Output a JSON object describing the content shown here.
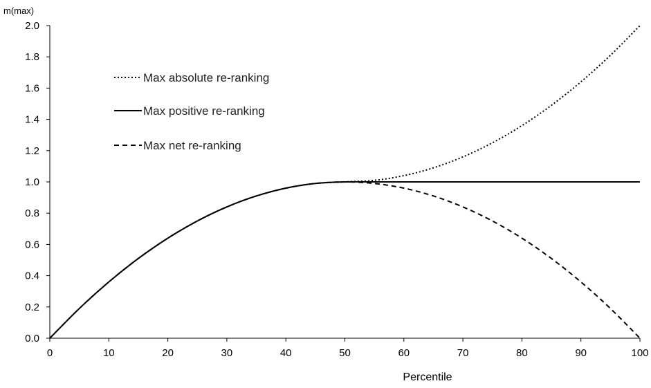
{
  "chart_data": {
    "type": "line",
    "title": "",
    "xlabel": "Percentile",
    "ylabel": "m(max)",
    "xlim": [
      0,
      100
    ],
    "ylim": [
      0,
      2
    ],
    "x_ticks": [
      "0",
      "10",
      "20",
      "30",
      "40",
      "50",
      "60",
      "70",
      "80",
      "90",
      "100"
    ],
    "y_ticks": [
      "0.0",
      "0.2",
      "0.4",
      "0.6",
      "0.8",
      "1.0",
      "1.2",
      "1.4",
      "1.6",
      "1.8",
      "2.0"
    ],
    "grid": false,
    "legend_position": "top-left",
    "x": [
      0,
      5,
      10,
      15,
      20,
      25,
      30,
      35,
      40,
      45,
      50,
      55,
      60,
      65,
      70,
      75,
      80,
      85,
      90,
      95,
      100
    ],
    "series": [
      {
        "name": "Max absolute re-ranking",
        "style": "dotted",
        "values": [
          0.0,
          0.19,
          0.36,
          0.51,
          0.64,
          0.75,
          0.84,
          0.91,
          0.96,
          0.99,
          1.0,
          1.01,
          1.04,
          1.09,
          1.16,
          1.25,
          1.36,
          1.49,
          1.64,
          1.81,
          2.0
        ]
      },
      {
        "name": "Max positive re-ranking",
        "style": "solid",
        "values": [
          0.0,
          0.19,
          0.36,
          0.51,
          0.64,
          0.75,
          0.84,
          0.91,
          0.96,
          0.99,
          1.0,
          1.0,
          1.0,
          1.0,
          1.0,
          1.0,
          1.0,
          1.0,
          1.0,
          1.0,
          1.0
        ]
      },
      {
        "name": "Max net re-ranking",
        "style": "dashed",
        "values": [
          0.0,
          0.19,
          0.36,
          0.51,
          0.64,
          0.75,
          0.84,
          0.91,
          0.96,
          0.99,
          1.0,
          0.99,
          0.96,
          0.91,
          0.84,
          0.75,
          0.64,
          0.51,
          0.36,
          0.19,
          0.0
        ]
      }
    ]
  }
}
